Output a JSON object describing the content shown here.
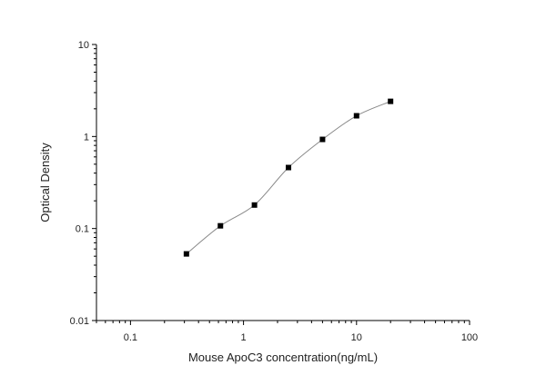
{
  "chart_data": {
    "type": "scatter",
    "title": "",
    "xlabel": "Mouse ApoC3 concentration(ng/mL)",
    "ylabel": "Optical Density",
    "x_scale": "log",
    "y_scale": "log",
    "xlim": [
      0.05,
      100
    ],
    "ylim": [
      0.01,
      10
    ],
    "x_ticks": [
      "0.1",
      "1",
      "10",
      "100"
    ],
    "y_ticks": [
      "0.01",
      "0.1",
      "1",
      "10"
    ],
    "grid": false,
    "legend": "none",
    "fit_curve": true,
    "marker_color": "#000000",
    "curve_color": "#888888",
    "series": [
      {
        "x": [
          0.3125,
          0.625,
          1.25,
          2.5,
          5,
          10,
          20
        ],
        "y": [
          0.053,
          0.107,
          0.18,
          0.46,
          0.93,
          1.68,
          2.41
        ]
      }
    ]
  }
}
